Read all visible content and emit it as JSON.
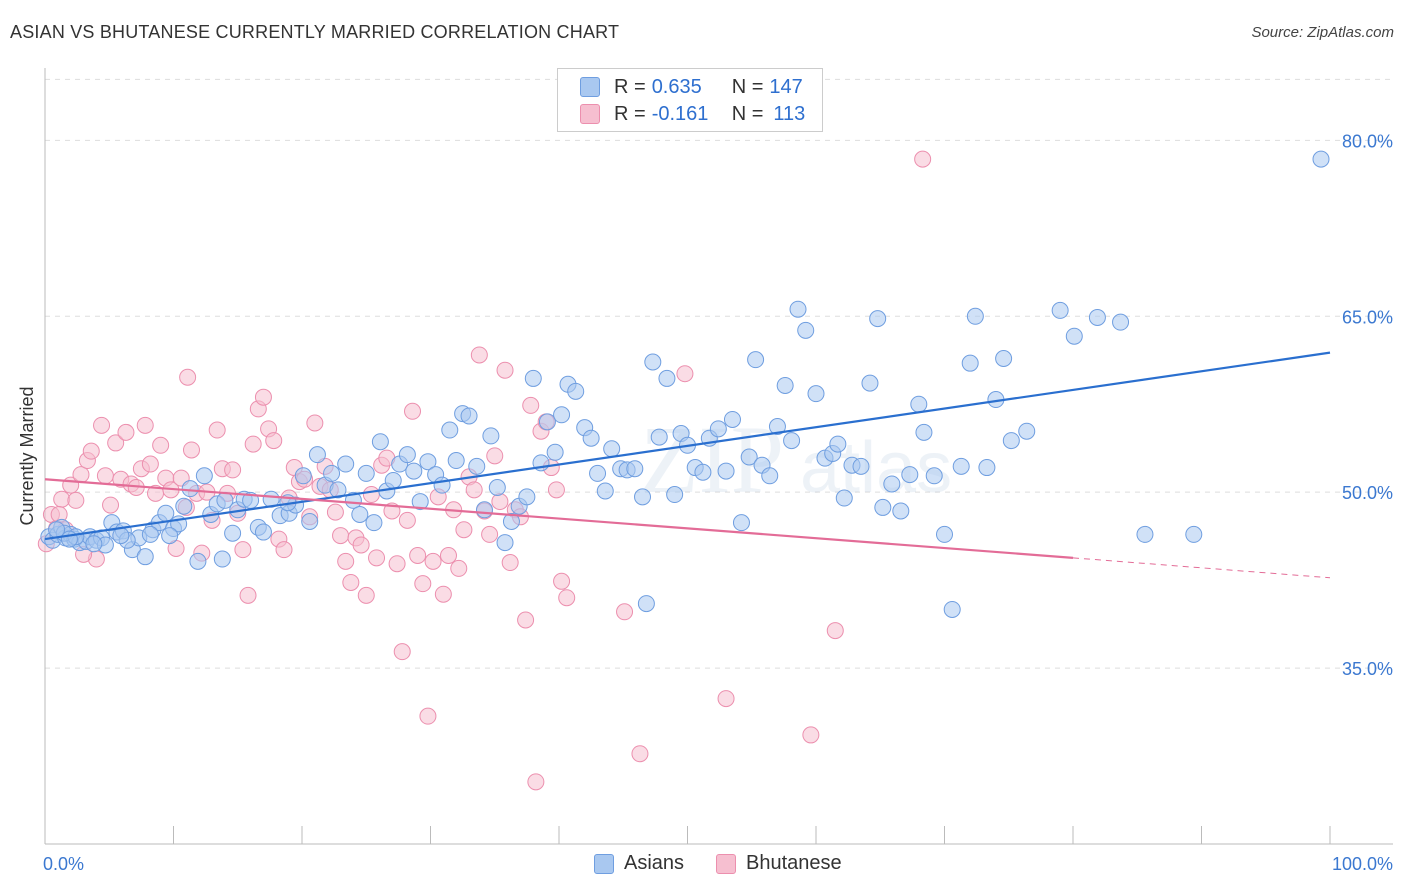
{
  "header": {
    "title": "ASIAN VS BHUTANESE CURRENTLY MARRIED CORRELATION CHART",
    "source": "Source: ZipAtlas.com"
  },
  "legend": {
    "asian": {
      "r_label": "R = ",
      "r_value": "0.635",
      "n_label": "N = ",
      "n_value": "147"
    },
    "bhutanese": {
      "r_label": "R = ",
      "r_value": "-0.161",
      "n_label": "N = ",
      "n_value": "113"
    }
  },
  "bottom_legend": {
    "asian": "Asians",
    "bhutanese": "Bhutanese"
  },
  "colors": {
    "asian_fill": "#a9c8f0",
    "asian_stroke": "#6f9ee0",
    "asian_line": "#2a6fcf",
    "bhutanese_fill": "#f6bfd0",
    "bhutanese_stroke": "#ec8fae",
    "bhutanese_line": "#e36c97",
    "tick_label": "#3b78d0",
    "grid": "#dddddd"
  },
  "chart_data": {
    "type": "scatter",
    "title": "ASIAN VS BHUTANESE CURRENTLY MARRIED CORRELATION CHART",
    "xlabel": "",
    "ylabel": "Currently Married",
    "xlim": [
      0,
      100
    ],
    "ylim": [
      20,
      86
    ],
    "x_tick_labels": [
      "0.0%",
      "100.0%"
    ],
    "y_ticks": [
      35,
      50,
      65,
      80
    ],
    "y_tick_labels": [
      "35.0%",
      "50.0%",
      "65.0%",
      "80.0%"
    ],
    "grid": true,
    "legend_position": "top-center",
    "watermark": "ZIPatlas",
    "trendlines": [
      {
        "series": "Asians",
        "x": [
          0,
          100
        ],
        "y": [
          46.0,
          61.9
        ]
      },
      {
        "series": "Bhutanese",
        "x": [
          0,
          80
        ],
        "y": [
          51.1,
          44.4
        ]
      },
      {
        "series": "Bhutanese",
        "x": [
          80,
          100
        ],
        "y": [
          44.4,
          42.7
        ],
        "dashed": true
      }
    ],
    "series": [
      {
        "name": "Asians",
        "points": [
          [
            0.3,
            46.2
          ],
          [
            0.6,
            45.9
          ],
          [
            1.0,
            46.4
          ],
          [
            1.3,
            47.0
          ],
          [
            1.6,
            46.1
          ],
          [
            2.0,
            46.4
          ],
          [
            2.3,
            46.0
          ],
          [
            2.7,
            45.7
          ],
          [
            3.2,
            45.8
          ],
          [
            3.5,
            46.2
          ],
          [
            4.0,
            45.9
          ],
          [
            4.4,
            46.1
          ],
          [
            4.7,
            45.5
          ],
          [
            5.2,
            47.4
          ],
          [
            5.6,
            46.6
          ],
          [
            6.1,
            46.7
          ],
          [
            6.8,
            45.1
          ],
          [
            7.3,
            46.1
          ],
          [
            7.8,
            44.5
          ],
          [
            8.4,
            46.8
          ],
          [
            8.9,
            47.4
          ],
          [
            9.4,
            48.2
          ],
          [
            10.0,
            46.9
          ],
          [
            10.4,
            47.3
          ],
          [
            10.8,
            48.8
          ],
          [
            11.3,
            50.3
          ],
          [
            11.9,
            44.1
          ],
          [
            12.4,
            51.4
          ],
          [
            12.9,
            48.1
          ],
          [
            13.4,
            49.0
          ],
          [
            14.0,
            49.3
          ],
          [
            14.6,
            46.5
          ],
          [
            15.0,
            48.5
          ],
          [
            15.5,
            49.4
          ],
          [
            16.0,
            49.3
          ],
          [
            16.6,
            47.0
          ],
          [
            17.0,
            46.6
          ],
          [
            17.6,
            49.4
          ],
          [
            18.3,
            48.0
          ],
          [
            19.0,
            48.2
          ],
          [
            19.5,
            48.9
          ],
          [
            20.1,
            51.4
          ],
          [
            20.6,
            47.5
          ],
          [
            21.2,
            53.2
          ],
          [
            21.8,
            50.6
          ],
          [
            22.3,
            51.6
          ],
          [
            22.8,
            50.2
          ],
          [
            23.4,
            52.4
          ],
          [
            24.0,
            49.3
          ],
          [
            24.5,
            48.1
          ],
          [
            25.0,
            51.6
          ],
          [
            25.6,
            47.4
          ],
          [
            26.1,
            54.3
          ],
          [
            26.6,
            50.1
          ],
          [
            27.1,
            51.0
          ],
          [
            27.6,
            52.4
          ],
          [
            28.2,
            53.2
          ],
          [
            28.7,
            51.8
          ],
          [
            29.2,
            49.2
          ],
          [
            29.8,
            52.6
          ],
          [
            30.4,
            51.5
          ],
          [
            30.9,
            50.6
          ],
          [
            31.5,
            55.3
          ],
          [
            32.0,
            52.7
          ],
          [
            32.5,
            56.7
          ],
          [
            33.0,
            56.5
          ],
          [
            33.6,
            52.2
          ],
          [
            34.2,
            48.5
          ],
          [
            34.7,
            54.8
          ],
          [
            35.2,
            50.4
          ],
          [
            35.8,
            45.7
          ],
          [
            36.3,
            47.5
          ],
          [
            36.9,
            48.8
          ],
          [
            37.5,
            49.6
          ],
          [
            38.0,
            59.7
          ],
          [
            38.6,
            52.5
          ],
          [
            39.1,
            56.0
          ],
          [
            39.7,
            53.4
          ],
          [
            40.2,
            56.6
          ],
          [
            40.7,
            59.2
          ],
          [
            41.3,
            58.6
          ],
          [
            42.0,
            55.5
          ],
          [
            42.5,
            54.6
          ],
          [
            43.0,
            51.6
          ],
          [
            43.6,
            50.1
          ],
          [
            44.1,
            53.7
          ],
          [
            44.8,
            52.0
          ],
          [
            45.3,
            51.9
          ],
          [
            45.9,
            52.0
          ],
          [
            46.5,
            49.6
          ],
          [
            46.8,
            40.5
          ],
          [
            47.3,
            61.1
          ],
          [
            47.8,
            54.7
          ],
          [
            48.4,
            59.7
          ],
          [
            49.0,
            49.8
          ],
          [
            49.5,
            55.0
          ],
          [
            50.0,
            54.0
          ],
          [
            50.6,
            52.1
          ],
          [
            51.2,
            51.7
          ],
          [
            51.7,
            54.6
          ],
          [
            52.4,
            55.4
          ],
          [
            53.0,
            51.8
          ],
          [
            53.5,
            56.2
          ],
          [
            54.2,
            47.4
          ],
          [
            54.8,
            53.0
          ],
          [
            55.3,
            61.3
          ],
          [
            55.8,
            52.3
          ],
          [
            56.4,
            51.4
          ],
          [
            57.0,
            55.6
          ],
          [
            57.6,
            59.1
          ],
          [
            58.1,
            54.4
          ],
          [
            58.6,
            65.6
          ],
          [
            59.2,
            63.8
          ],
          [
            60.0,
            58.4
          ],
          [
            60.7,
            52.9
          ],
          [
            61.3,
            53.3
          ],
          [
            61.7,
            54.1
          ],
          [
            62.2,
            49.5
          ],
          [
            62.8,
            52.3
          ],
          [
            63.5,
            52.2
          ],
          [
            64.2,
            59.3
          ],
          [
            64.8,
            64.8
          ],
          [
            65.2,
            48.7
          ],
          [
            65.9,
            50.7
          ],
          [
            66.6,
            48.4
          ],
          [
            67.3,
            51.5
          ],
          [
            68.0,
            57.5
          ],
          [
            68.4,
            55.1
          ],
          [
            69.2,
            51.4
          ],
          [
            70.0,
            46.4
          ],
          [
            70.6,
            40.0
          ],
          [
            71.3,
            52.2
          ],
          [
            72.0,
            61.0
          ],
          [
            72.4,
            65.0
          ],
          [
            73.3,
            52.1
          ],
          [
            74.0,
            57.9
          ],
          [
            74.6,
            61.4
          ],
          [
            75.2,
            54.4
          ],
          [
            76.4,
            55.2
          ],
          [
            79.0,
            65.5
          ],
          [
            80.1,
            63.3
          ],
          [
            81.9,
            64.9
          ],
          [
            83.7,
            64.5
          ],
          [
            85.6,
            46.4
          ],
          [
            89.4,
            46.4
          ],
          [
            1.5,
            46.5
          ],
          [
            2.4,
            46.2
          ],
          [
            3.8,
            45.6
          ],
          [
            6.4,
            45.9
          ],
          [
            9.7,
            46.3
          ],
          [
            99.3,
            78.4
          ],
          [
            0.9,
            46.8
          ],
          [
            1.9,
            46.0
          ],
          [
            5.9,
            46.3
          ],
          [
            8.2,
            46.4
          ],
          [
            13.8,
            44.3
          ],
          [
            18.9,
            49.1
          ]
        ]
      },
      {
        "name": "Bhutanese",
        "points": [
          [
            0.1,
            45.6
          ],
          [
            0.5,
            48.1
          ],
          [
            0.9,
            46.9
          ],
          [
            1.3,
            49.4
          ],
          [
            1.6,
            46.8
          ],
          [
            2.0,
            50.6
          ],
          [
            2.4,
            49.3
          ],
          [
            2.8,
            51.5
          ],
          [
            3.3,
            52.7
          ],
          [
            3.6,
            53.5
          ],
          [
            4.0,
            44.3
          ],
          [
            4.4,
            55.7
          ],
          [
            4.7,
            51.4
          ],
          [
            5.1,
            48.9
          ],
          [
            5.5,
            54.2
          ],
          [
            5.9,
            51.1
          ],
          [
            6.3,
            55.1
          ],
          [
            6.7,
            50.7
          ],
          [
            7.1,
            50.4
          ],
          [
            7.5,
            52.0
          ],
          [
            7.8,
            55.7
          ],
          [
            8.2,
            52.4
          ],
          [
            8.6,
            49.9
          ],
          [
            9.0,
            54.0
          ],
          [
            9.4,
            51.2
          ],
          [
            9.8,
            50.2
          ],
          [
            10.2,
            45.2
          ],
          [
            10.6,
            51.2
          ],
          [
            11.0,
            48.7
          ],
          [
            11.4,
            53.6
          ],
          [
            11.8,
            49.9
          ],
          [
            12.2,
            44.8
          ],
          [
            12.6,
            50.0
          ],
          [
            13.0,
            47.6
          ],
          [
            13.4,
            55.3
          ],
          [
            13.8,
            52.0
          ],
          [
            14.2,
            49.9
          ],
          [
            14.6,
            51.9
          ],
          [
            15.0,
            48.2
          ],
          [
            15.4,
            45.1
          ],
          [
            15.8,
            41.2
          ],
          [
            16.2,
            54.1
          ],
          [
            16.6,
            57.1
          ],
          [
            17.0,
            58.1
          ],
          [
            17.4,
            55.4
          ],
          [
            17.8,
            54.4
          ],
          [
            18.2,
            46.0
          ],
          [
            18.6,
            45.1
          ],
          [
            19.0,
            49.5
          ],
          [
            19.4,
            52.1
          ],
          [
            19.8,
            50.9
          ],
          [
            20.2,
            51.1
          ],
          [
            20.6,
            47.9
          ],
          [
            21.0,
            55.9
          ],
          [
            21.4,
            50.5
          ],
          [
            21.8,
            52.2
          ],
          [
            22.2,
            50.2
          ],
          [
            22.6,
            48.3
          ],
          [
            23.0,
            46.3
          ],
          [
            23.4,
            44.1
          ],
          [
            23.8,
            42.3
          ],
          [
            24.2,
            46.1
          ],
          [
            24.6,
            45.5
          ],
          [
            25.0,
            41.2
          ],
          [
            25.4,
            49.8
          ],
          [
            25.8,
            44.4
          ],
          [
            26.2,
            52.3
          ],
          [
            26.6,
            52.9
          ],
          [
            27.0,
            48.4
          ],
          [
            27.4,
            43.9
          ],
          [
            27.8,
            36.4
          ],
          [
            28.2,
            47.6
          ],
          [
            28.6,
            56.9
          ],
          [
            29.0,
            44.6
          ],
          [
            29.4,
            42.2
          ],
          [
            29.8,
            30.9
          ],
          [
            30.2,
            44.1
          ],
          [
            30.6,
            49.6
          ],
          [
            31.0,
            41.3
          ],
          [
            31.4,
            44.6
          ],
          [
            31.8,
            48.5
          ],
          [
            32.2,
            43.5
          ],
          [
            32.6,
            46.8
          ],
          [
            33.0,
            51.3
          ],
          [
            33.4,
            50.2
          ],
          [
            33.8,
            61.7
          ],
          [
            34.2,
            48.4
          ],
          [
            34.6,
            46.4
          ],
          [
            35.0,
            53.1
          ],
          [
            35.4,
            49.2
          ],
          [
            35.8,
            60.4
          ],
          [
            36.2,
            44.0
          ],
          [
            36.6,
            48.5
          ],
          [
            37.0,
            47.9
          ],
          [
            37.4,
            39.1
          ],
          [
            37.8,
            57.4
          ],
          [
            38.2,
            25.3
          ],
          [
            38.6,
            55.2
          ],
          [
            39.0,
            56.0
          ],
          [
            39.4,
            52.1
          ],
          [
            39.8,
            50.2
          ],
          [
            40.2,
            42.4
          ],
          [
            40.6,
            41.0
          ],
          [
            45.1,
            39.8
          ],
          [
            46.3,
            27.7
          ],
          [
            49.8,
            60.1
          ],
          [
            53.0,
            32.4
          ],
          [
            59.6,
            29.3
          ],
          [
            61.5,
            38.2
          ],
          [
            68.3,
            78.4
          ],
          [
            1.1,
            48.1
          ],
          [
            3.0,
            44.7
          ],
          [
            11.1,
            59.8
          ]
        ]
      }
    ]
  }
}
